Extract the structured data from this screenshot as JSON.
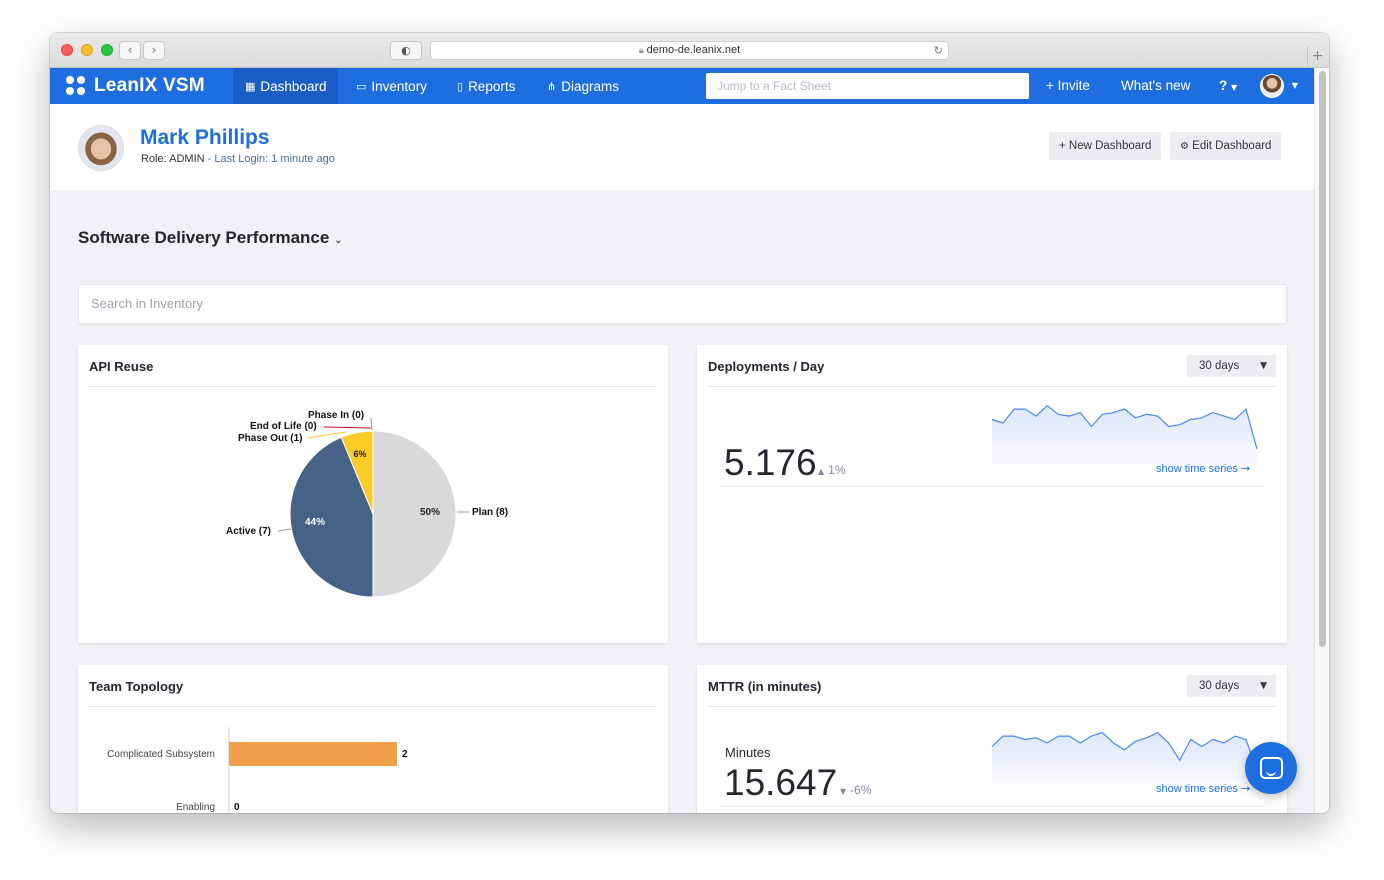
{
  "browser": {
    "url": "demo-de.leanix.net",
    "back_glyph": "‹",
    "forward_glyph": "›"
  },
  "nav": {
    "brand": "LeanIX VSM",
    "tabs": [
      {
        "label": "Dashboard",
        "icon": "grid-icon",
        "active": true
      },
      {
        "label": "Inventory",
        "icon": "inventory-icon",
        "active": false
      },
      {
        "label": "Reports",
        "icon": "bar-chart-icon",
        "active": false
      },
      {
        "label": "Diagrams",
        "icon": "sitemap-icon",
        "active": false
      }
    ],
    "search_placeholder": "Jump to a Fact Sheet",
    "invite": "+ Invite",
    "whats_new": "What's new",
    "help": "?"
  },
  "profile": {
    "name": "Mark Phillips",
    "role": "Role: ADMIN",
    "last_login": "- Last Login: 1 minute ago",
    "new_dashboard": "+ New Dashboard",
    "edit_dashboard": "Edit Dashboard"
  },
  "dashboard": {
    "title": "Software Delivery Performance",
    "search_placeholder": "Search in Inventory"
  },
  "cards": {
    "api_reuse": {
      "title": "API Reuse",
      "chart_data": {
        "type": "pie",
        "slices": [
          {
            "label": "Plan (8)",
            "value": 8,
            "percent": "50%",
            "color": "#d9d9d9"
          },
          {
            "label": "Active (7)",
            "value": 7,
            "percent": "44%",
            "color": "#466387"
          },
          {
            "label": "Phase Out (1)",
            "value": 1,
            "percent": "6%",
            "color": "#fbcb2a"
          },
          {
            "label": "End of Life (0)",
            "value": 0,
            "percent": "",
            "color": "#d0021b"
          },
          {
            "label": "Phase In (0)",
            "value": 0,
            "percent": "",
            "color": "#cccccc"
          }
        ]
      }
    },
    "deployments": {
      "title": "Deployments / Day",
      "period": "30 days",
      "value": "5.176",
      "delta": "1%",
      "delta_direction": "up",
      "link": "show time series",
      "chart_data": {
        "type": "area",
        "series": [
          {
            "values": [
              62,
              60,
              68,
              68,
              64,
              70,
              65,
              64,
              66,
              58,
              65,
              66,
              68,
              63,
              65,
              64,
              58,
              59,
              62,
              63,
              66,
              64,
              62,
              68,
              45
            ]
          }
        ]
      }
    },
    "team_topology": {
      "title": "Team Topology",
      "chart_data": {
        "type": "bar",
        "categories": [
          "Complicated Subsystem",
          "Enabling"
        ],
        "values": [
          2,
          0
        ],
        "color": "#f0a04b"
      }
    },
    "mttr": {
      "title": "MTTR (in minutes)",
      "period": "30 days",
      "label": "Minutes",
      "value": "15.647",
      "delta": "-6%",
      "delta_direction": "down",
      "link": "show time series",
      "chart_data": {
        "type": "area",
        "series": [
          {
            "values": [
              58,
              64,
              64,
              62,
              63,
              60,
              64,
              64,
              60,
              64,
              66,
              60,
              56,
              61,
              63,
              66,
              60,
              50,
              62,
              58,
              62,
              60,
              64,
              62,
              44
            ]
          }
        ]
      }
    }
  }
}
